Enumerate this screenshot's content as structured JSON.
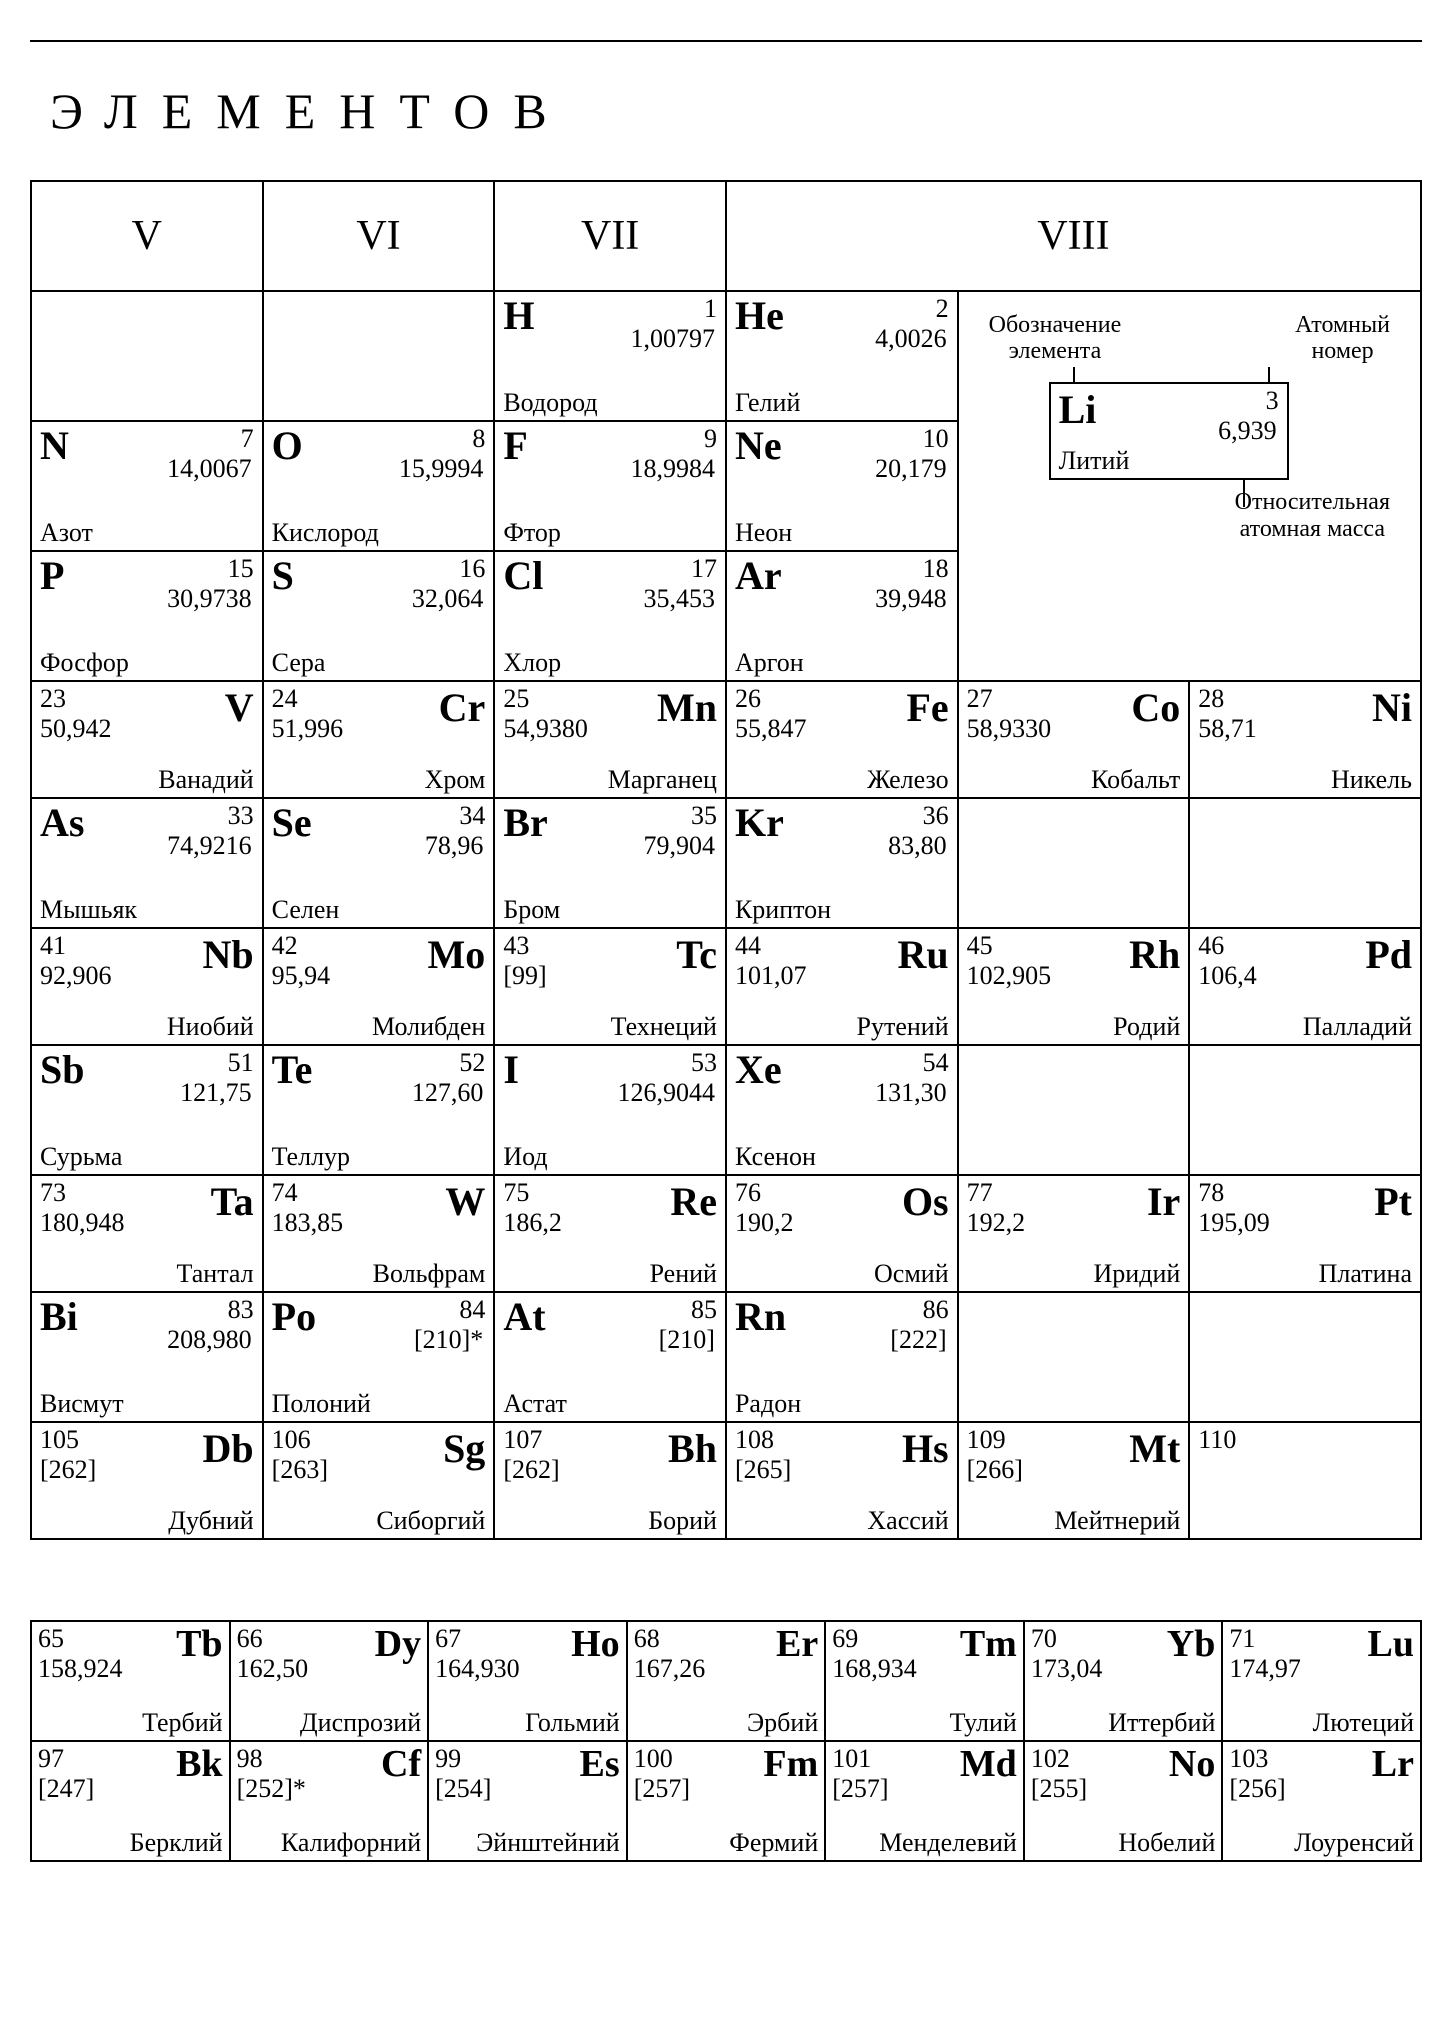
{
  "title": "ЭЛЕМЕНТОВ",
  "groups": [
    "V",
    "VI",
    "VII",
    "VIII"
  ],
  "legend": {
    "label_symbol": "Обозначение\nэлемента",
    "label_number": "Атомный\nномер",
    "label_mass": "Относительная\nатомная масса",
    "ex_sym": "Li",
    "ex_num": "3",
    "ex_mass": "6,939",
    "ex_name": "Литий"
  },
  "H": {
    "n": "1",
    "m": "1,00797",
    "s": "H",
    "nm": "Водород"
  },
  "He": {
    "n": "2",
    "m": "4,0026",
    "s": "He",
    "nm": "Гелий"
  },
  "N": {
    "n": "7",
    "m": "14,0067",
    "s": "N",
    "nm": "Азот"
  },
  "O": {
    "n": "8",
    "m": "15,9994",
    "s": "O",
    "nm": "Кислород"
  },
  "F": {
    "n": "9",
    "m": "18,9984",
    "s": "F",
    "nm": "Фтор"
  },
  "Ne": {
    "n": "10",
    "m": "20,179",
    "s": "Ne",
    "nm": "Неон"
  },
  "P": {
    "n": "15",
    "m": "30,9738",
    "s": "P",
    "nm": "Фосфор"
  },
  "S": {
    "n": "16",
    "m": "32,064",
    "s": "S",
    "nm": "Сера"
  },
  "Cl": {
    "n": "17",
    "m": "35,453",
    "s": "Cl",
    "nm": "Хлор"
  },
  "Ar": {
    "n": "18",
    "m": "39,948",
    "s": "Ar",
    "nm": "Аргон"
  },
  "V": {
    "n": "23",
    "m": "50,942",
    "s": "V",
    "nm": "Ванадий"
  },
  "Cr": {
    "n": "24",
    "m": "51,996",
    "s": "Cr",
    "nm": "Хром"
  },
  "Mn": {
    "n": "25",
    "m": "54,9380",
    "s": "Mn",
    "nm": "Марганец"
  },
  "Fe": {
    "n": "26",
    "m": "55,847",
    "s": "Fe",
    "nm": "Железо"
  },
  "Co": {
    "n": "27",
    "m": "58,9330",
    "s": "Co",
    "nm": "Кобальт"
  },
  "Ni": {
    "n": "28",
    "m": "58,71",
    "s": "Ni",
    "nm": "Никель"
  },
  "As": {
    "n": "33",
    "m": "74,9216",
    "s": "As",
    "nm": "Мышьяк"
  },
  "Se": {
    "n": "34",
    "m": "78,96",
    "s": "Se",
    "nm": "Селен"
  },
  "Br": {
    "n": "35",
    "m": "79,904",
    "s": "Br",
    "nm": "Бром"
  },
  "Kr": {
    "n": "36",
    "m": "83,80",
    "s": "Kr",
    "nm": "Криптон"
  },
  "Nb": {
    "n": "41",
    "m": "92,906",
    "s": "Nb",
    "nm": "Ниобий"
  },
  "Mo": {
    "n": "42",
    "m": "95,94",
    "s": "Mo",
    "nm": "Молибден"
  },
  "Tc": {
    "n": "43",
    "m": "[99]",
    "s": "Tc",
    "nm": "Технеций"
  },
  "Ru": {
    "n": "44",
    "m": "101,07",
    "s": "Ru",
    "nm": "Рутений"
  },
  "Rh": {
    "n": "45",
    "m": "102,905",
    "s": "Rh",
    "nm": "Родий"
  },
  "Pd": {
    "n": "46",
    "m": "106,4",
    "s": "Pd",
    "nm": "Палладий"
  },
  "Sb": {
    "n": "51",
    "m": "121,75",
    "s": "Sb",
    "nm": "Сурьма"
  },
  "Te": {
    "n": "52",
    "m": "127,60",
    "s": "Te",
    "nm": "Теллур"
  },
  "I": {
    "n": "53",
    "m": "126,9044",
    "s": "I",
    "nm": "Иод"
  },
  "Xe": {
    "n": "54",
    "m": "131,30",
    "s": "Xe",
    "nm": "Ксенон"
  },
  "Ta": {
    "n": "73",
    "m": "180,948",
    "s": "Ta",
    "nm": "Тантал"
  },
  "W": {
    "n": "74",
    "m": "183,85",
    "s": "W",
    "nm": "Вольфрам"
  },
  "Re": {
    "n": "75",
    "m": "186,2",
    "s": "Re",
    "nm": "Рений"
  },
  "Os": {
    "n": "76",
    "m": "190,2",
    "s": "Os",
    "nm": "Осмий"
  },
  "Ir": {
    "n": "77",
    "m": "192,2",
    "s": "Ir",
    "nm": "Иридий"
  },
  "Pt": {
    "n": "78",
    "m": "195,09",
    "s": "Pt",
    "nm": "Платина"
  },
  "Bi": {
    "n": "83",
    "m": "208,980",
    "s": "Bi",
    "nm": "Висмут"
  },
  "Po": {
    "n": "84",
    "m": "[210]*",
    "s": "Po",
    "nm": "Полоний"
  },
  "At": {
    "n": "85",
    "m": "[210]",
    "s": "At",
    "nm": "Астат"
  },
  "Rn": {
    "n": "86",
    "m": "[222]",
    "s": "Rn",
    "nm": "Радон"
  },
  "Db": {
    "n": "105",
    "m": "[262]",
    "s": "Db",
    "nm": "Дубний"
  },
  "Sg": {
    "n": "106",
    "m": "[263]",
    "s": "Sg",
    "nm": "Сиборгий"
  },
  "Bh": {
    "n": "107",
    "m": "[262]",
    "s": "Bh",
    "nm": "Борий"
  },
  "Hs": {
    "n": "108",
    "m": "[265]",
    "s": "Hs",
    "nm": "Хассий"
  },
  "Mt": {
    "n": "109",
    "m": "[266]",
    "s": "Mt",
    "nm": "Мейтнерий"
  },
  "E110": {
    "n": "110",
    "m": "",
    "s": "",
    "nm": ""
  },
  "Tb": {
    "n": "65",
    "m": "158,924",
    "s": "Tb",
    "nm": "Тербий"
  },
  "Dy": {
    "n": "66",
    "m": "162,50",
    "s": "Dy",
    "nm": "Диспрозий"
  },
  "Ho": {
    "n": "67",
    "m": "164,930",
    "s": "Ho",
    "nm": "Гольмий"
  },
  "Er": {
    "n": "68",
    "m": "167,26",
    "s": "Er",
    "nm": "Эрбий"
  },
  "Tm": {
    "n": "69",
    "m": "168,934",
    "s": "Tm",
    "nm": "Тулий"
  },
  "Yb": {
    "n": "70",
    "m": "173,04",
    "s": "Yb",
    "nm": "Иттербий"
  },
  "Lu": {
    "n": "71",
    "m": "174,97",
    "s": "Lu",
    "nm": "Лютеций"
  },
  "Bk": {
    "n": "97",
    "m": "[247]",
    "s": "Bk",
    "nm": "Берклий"
  },
  "Cf": {
    "n": "98",
    "m": "[252]*",
    "s": "Cf",
    "nm": "Калифорний"
  },
  "Es": {
    "n": "99",
    "m": "[254]",
    "s": "Es",
    "nm": "Эйнштейний"
  },
  "Fm": {
    "n": "100",
    "m": "[257]",
    "s": "Fm",
    "nm": "Фермий"
  },
  "Md": {
    "n": "101",
    "m": "[257]",
    "s": "Md",
    "nm": "Менделевий"
  },
  "No": {
    "n": "102",
    "m": "[255]",
    "s": "No",
    "nm": "Нобелий"
  },
  "Lr": {
    "n": "103",
    "m": "[256]",
    "s": "Lr",
    "nm": "Лоуренсий"
  }
}
